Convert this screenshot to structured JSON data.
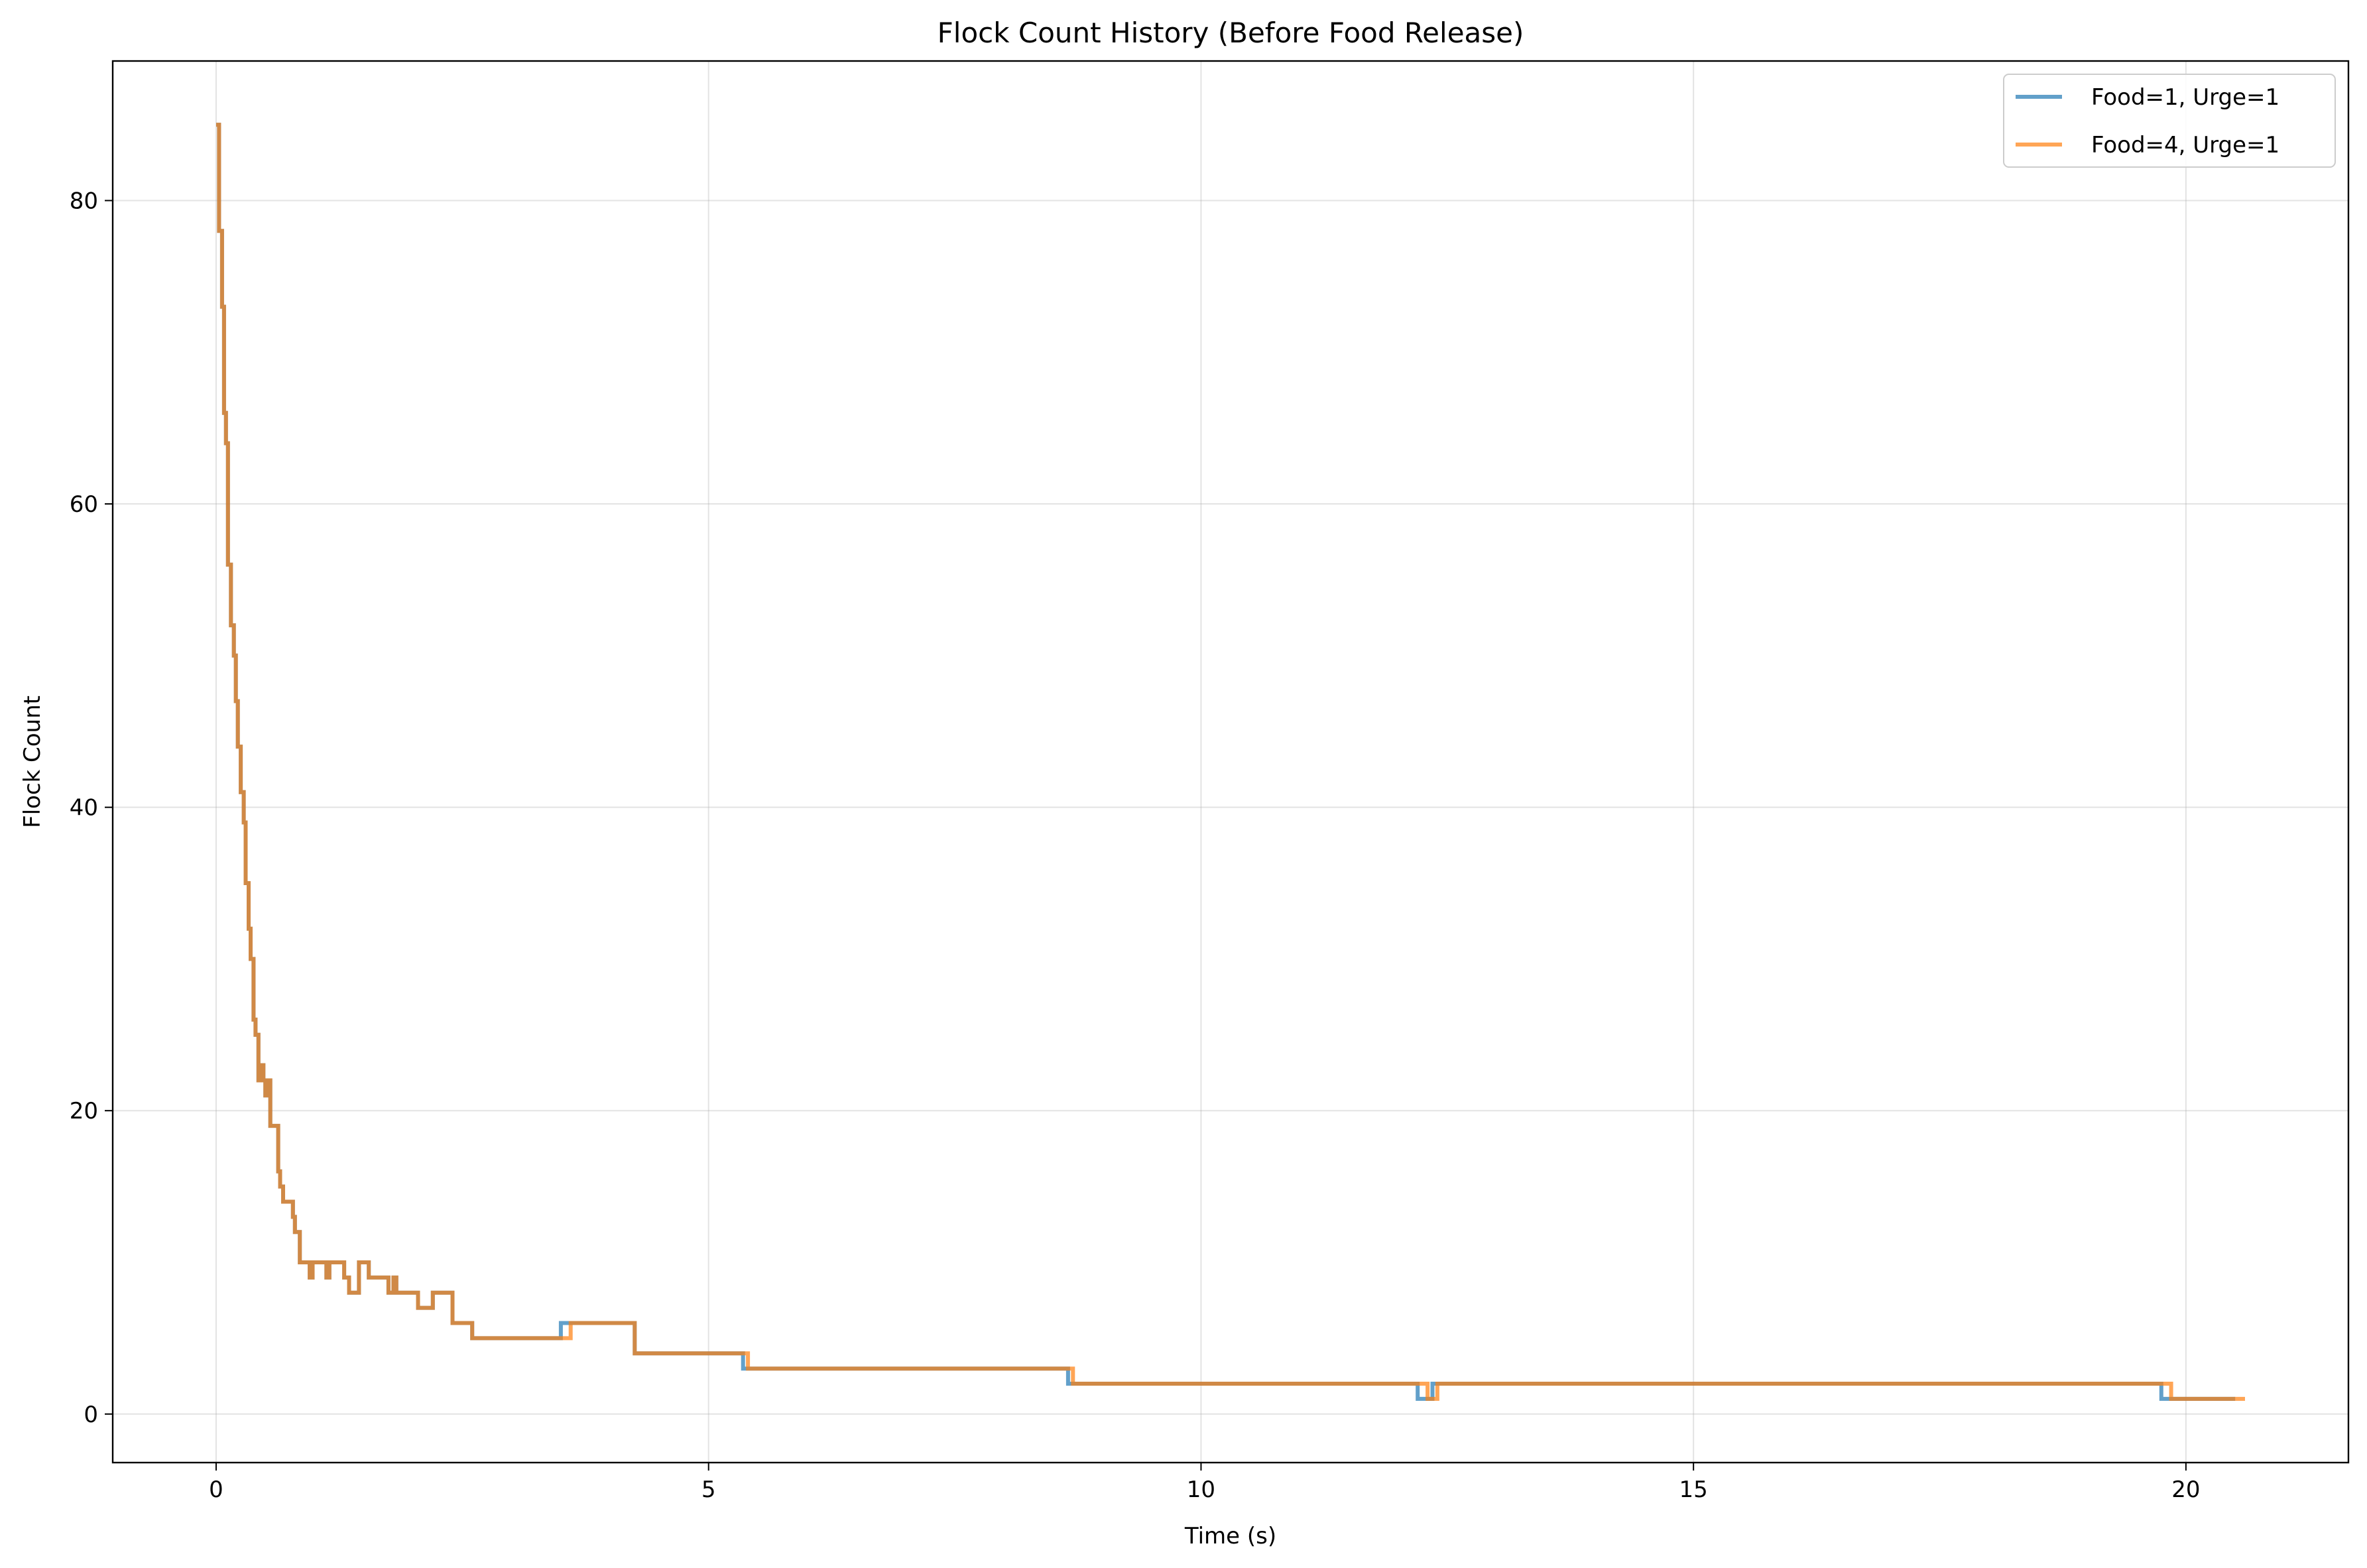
{
  "chart_data": {
    "type": "line",
    "line_style": "step",
    "title": "Flock Count History (Before Food Release)",
    "xlabel": "Time (s)",
    "ylabel": "Flock Count",
    "xlim": [
      -1.05,
      21.65
    ],
    "ylim": [
      -3.2,
      89.2
    ],
    "xticks": [
      0,
      5,
      10,
      15,
      20
    ],
    "yticks": [
      0,
      20,
      40,
      60,
      80
    ],
    "xtick_labels": [
      "0",
      "5",
      "10",
      "15",
      "20"
    ],
    "ytick_labels": [
      "0",
      "20",
      "40",
      "60",
      "80"
    ],
    "grid": true,
    "legend_position": "top-right",
    "series": [
      {
        "name": "Food=1, Urge=1",
        "color": "#1f77b4",
        "x": [
          0.0,
          0.03,
          0.06,
          0.08,
          0.1,
          0.12,
          0.15,
          0.18,
          0.2,
          0.22,
          0.25,
          0.28,
          0.3,
          0.33,
          0.35,
          0.38,
          0.4,
          0.43,
          0.45,
          0.48,
          0.5,
          0.53,
          0.55,
          0.58,
          0.6,
          0.63,
          0.65,
          0.68,
          0.7,
          0.75,
          0.78,
          0.8,
          0.85,
          0.92,
          0.95,
          0.98,
          1.0,
          1.05,
          1.1,
          1.12,
          1.15,
          1.3,
          1.32,
          1.35,
          1.4,
          1.45,
          1.55,
          1.6,
          1.65,
          1.75,
          1.8,
          1.83,
          1.88,
          2.05,
          2.1,
          2.2,
          2.25,
          2.4,
          2.45,
          2.55,
          2.6,
          2.63,
          3.45,
          3.5,
          3.55,
          4.2,
          4.25,
          5.3,
          5.35,
          8.6,
          8.65,
          12.15,
          12.2,
          12.3,
          12.35,
          19.7,
          19.75,
          20.5
        ],
        "y": [
          85,
          78,
          73,
          66,
          64,
          56,
          52,
          50,
          47,
          44,
          41,
          39,
          35,
          32,
          30,
          26,
          25,
          22,
          23,
          22,
          21,
          22,
          19,
          19,
          19,
          16,
          15,
          14,
          14,
          14,
          13,
          12,
          10,
          10,
          9,
          10,
          10,
          10,
          10,
          9,
          10,
          9,
          9,
          8,
          8,
          10,
          9,
          9,
          9,
          8,
          9,
          8,
          8,
          7,
          7,
          8,
          8,
          6,
          6,
          6,
          5,
          5,
          5,
          6,
          6,
          6,
          4,
          4,
          3,
          3,
          2,
          2,
          1,
          1,
          2,
          2,
          1,
          1
        ]
      },
      {
        "name": "Food=4, Urge=1",
        "color": "#ff7f0e",
        "x": [
          0.0,
          0.03,
          0.06,
          0.08,
          0.1,
          0.12,
          0.15,
          0.18,
          0.2,
          0.22,
          0.25,
          0.28,
          0.3,
          0.33,
          0.35,
          0.38,
          0.4,
          0.43,
          0.45,
          0.48,
          0.5,
          0.53,
          0.55,
          0.58,
          0.6,
          0.63,
          0.65,
          0.68,
          0.7,
          0.75,
          0.78,
          0.8,
          0.85,
          0.92,
          0.95,
          0.98,
          1.0,
          1.05,
          1.1,
          1.12,
          1.15,
          1.3,
          1.32,
          1.35,
          1.4,
          1.45,
          1.55,
          1.6,
          1.65,
          1.75,
          1.8,
          1.83,
          1.88,
          2.05,
          2.1,
          2.2,
          2.25,
          2.4,
          2.45,
          2.55,
          2.6,
          2.63,
          3.55,
          3.6,
          4.2,
          4.25,
          5.35,
          5.4,
          8.65,
          8.7,
          12.25,
          12.3,
          12.35,
          12.4,
          19.8,
          19.85,
          20.6
        ],
        "y": [
          85,
          78,
          73,
          66,
          64,
          56,
          52,
          50,
          47,
          44,
          41,
          39,
          35,
          32,
          30,
          26,
          25,
          22,
          23,
          22,
          21,
          22,
          19,
          19,
          19,
          16,
          15,
          14,
          14,
          14,
          13,
          12,
          10,
          10,
          9,
          10,
          10,
          10,
          10,
          9,
          10,
          9,
          9,
          8,
          8,
          10,
          9,
          9,
          9,
          8,
          9,
          8,
          8,
          7,
          7,
          8,
          8,
          6,
          6,
          6,
          5,
          5,
          5,
          6,
          6,
          4,
          4,
          3,
          3,
          2,
          2,
          1,
          1,
          2,
          2,
          1,
          1
        ]
      }
    ]
  }
}
